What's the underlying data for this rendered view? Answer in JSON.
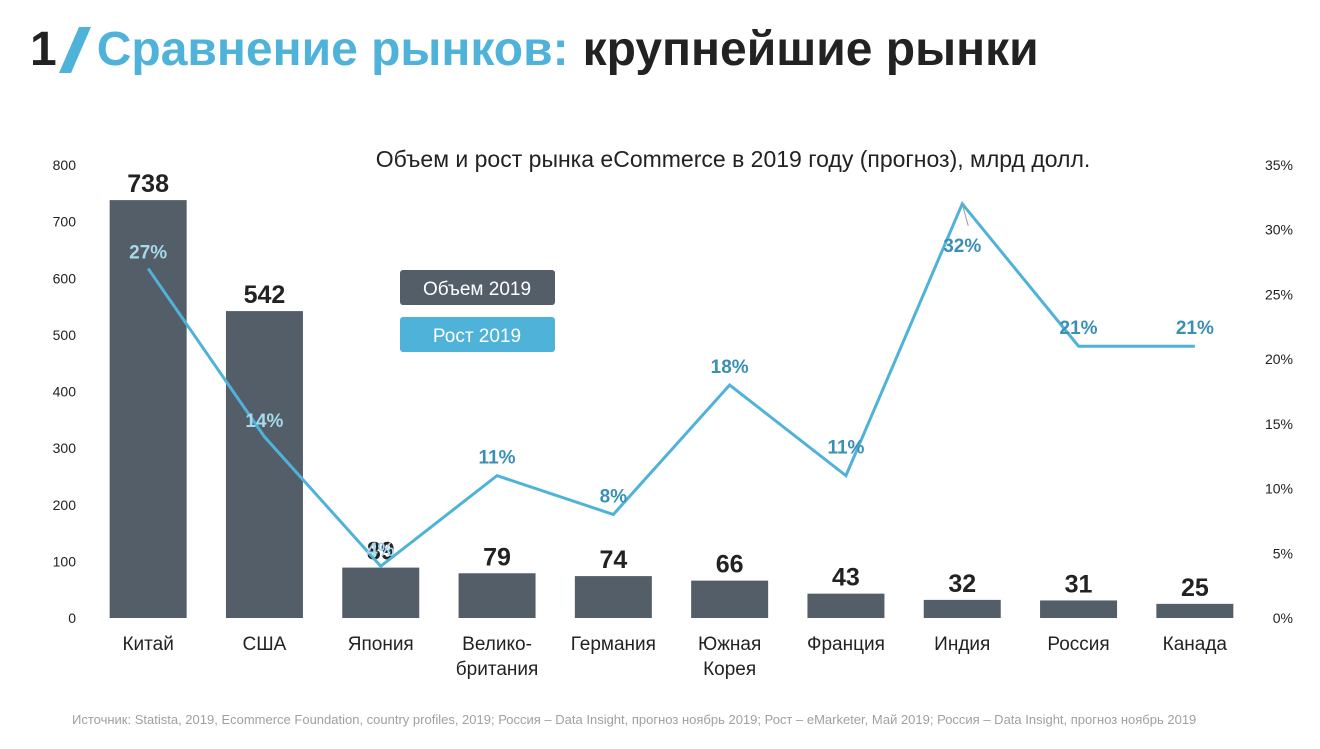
{
  "slide": {
    "number": "1",
    "title_accent": "Сравнение рынков:",
    "title_rest": "крупнейшие рынки",
    "source": "Источник: Statista, 2019, Ecommerce Foundation, country profiles, 2019; Россия – Data Insight, прогноз ноябрь 2019; Рост – eMarketer, Май 2019; Россия – Data Insight, прогноз ноябрь 2019"
  },
  "colors": {
    "accent": "#4fb3d9",
    "bar": "#535e68",
    "text": "#222222",
    "growth_label": "#3a8fb5"
  },
  "chart_data": {
    "type": "bar",
    "title": "Объем и рост рынка eCommerce в 2019 году (прогноз), млрд долл.",
    "categories": [
      "Китай",
      "США",
      "Япония",
      "Велико-\nбритания",
      "Германия",
      "Южная\nКорея",
      "Франция",
      "Индия",
      "Россия",
      "Канада"
    ],
    "series": [
      {
        "name": "Объем 2019",
        "type": "bar",
        "axis": "left",
        "values": [
          738,
          542,
          89,
          79,
          74,
          66,
          43,
          32,
          31,
          25
        ],
        "labels": [
          "738",
          "542",
          "89",
          "79",
          "74",
          "66",
          "43",
          "32",
          "31",
          "25"
        ]
      },
      {
        "name": "Рост 2019",
        "type": "line",
        "axis": "right",
        "values": [
          27,
          14,
          4,
          11,
          8,
          18,
          11,
          32,
          21,
          21
        ],
        "labels": [
          "27%",
          "14%",
          "4%",
          "11%",
          "8%",
          "18%",
          "11%",
          "32%",
          "21%",
          "21%"
        ]
      }
    ],
    "y_left": {
      "min": 0,
      "max": 800,
      "ticks": [
        "0",
        "100",
        "200",
        "300",
        "400",
        "500",
        "600",
        "700",
        "800"
      ]
    },
    "y_right": {
      "min": 0,
      "max": 35,
      "ticks": [
        "0%",
        "5%",
        "10%",
        "15%",
        "20%",
        "25%",
        "30%",
        "35%"
      ]
    },
    "grid": false,
    "legend_position": "center-left"
  }
}
